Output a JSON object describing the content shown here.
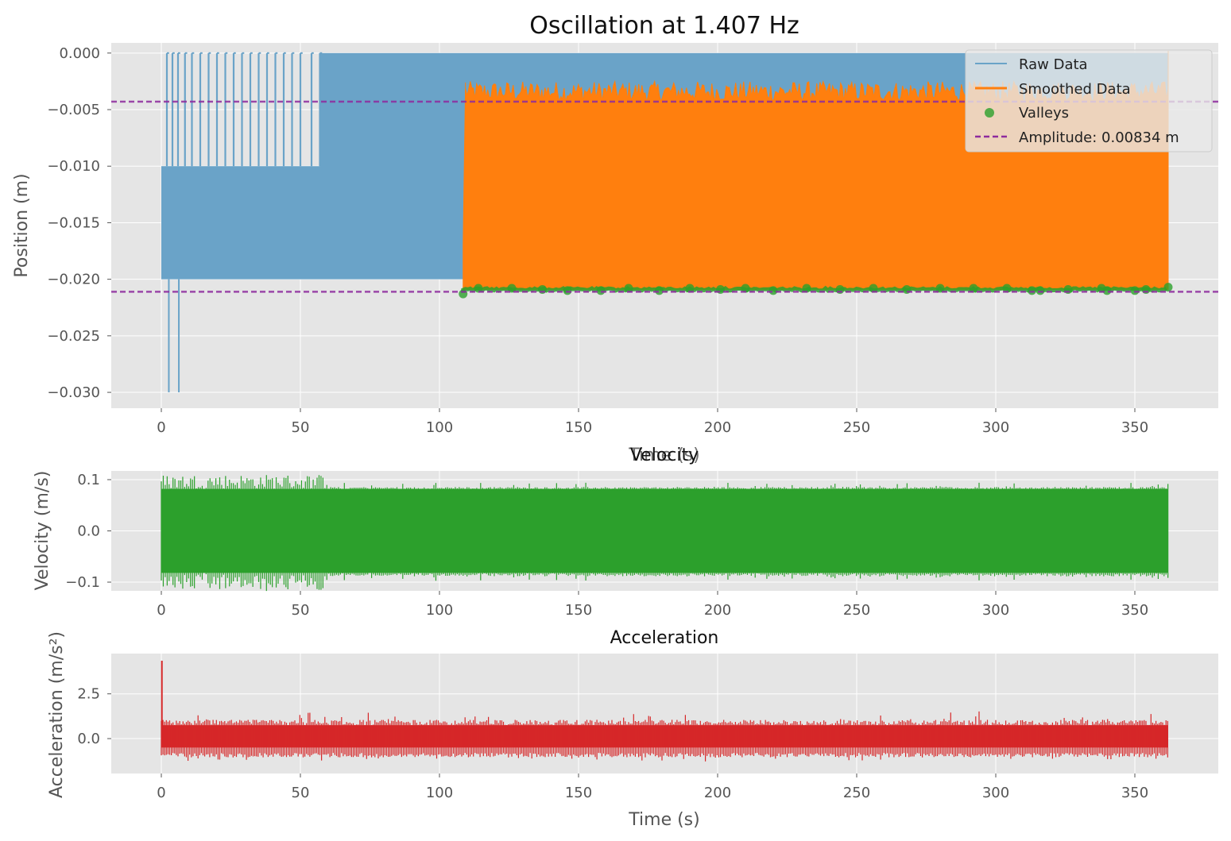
{
  "colors": {
    "axes_bg": "#e5e5e5",
    "grid": "#ffffff",
    "raw": "#6aa3c8",
    "smoothed": "#ff7f0e",
    "valleys": "#2ca02c",
    "amplitude": "#8e2b9e",
    "velocity": "#2ca02c",
    "acceleration": "#d62728"
  },
  "chart_data": [
    {
      "type": "line",
      "title": "Oscillation at 1.407 Hz",
      "xlabel": "Time (s)",
      "ylabel": "Position (m)",
      "xlim": [
        -18,
        380
      ],
      "ylim": [
        -0.0314,
        0.0009
      ],
      "xticks": [
        0,
        50,
        100,
        150,
        200,
        250,
        300,
        350
      ],
      "xtick_labels": [
        "0",
        "50",
        "100",
        "150",
        "200",
        "250",
        "300",
        "350"
      ],
      "yticks": [
        0.0,
        -0.005,
        -0.01,
        -0.015,
        -0.02,
        -0.025,
        -0.03
      ],
      "ytick_labels": [
        "0.000",
        "−0.005",
        "−0.010",
        "−0.015",
        "−0.020",
        "−0.025",
        "−0.030"
      ],
      "grid": true,
      "legend_position": "top-right",
      "frequency_hz": 1.407,
      "series": [
        {
          "name": "Raw Data",
          "kind": "raw",
          "description_envelope": {
            "x_start": 0,
            "x_end": 362,
            "y_min": -0.02,
            "y_max": 0.0
          },
          "segments": [
            {
              "x_start": 0.0,
              "x_end": 57.0,
              "y_low": -0.02,
              "y_high": -0.01,
              "spikes_to": 0.0,
              "spike_x": [
                2,
                4,
                6,
                8.5,
                11,
                14,
                17,
                20,
                23,
                26,
                29,
                32,
                35,
                38,
                41,
                44,
                47,
                50,
                54,
                57
              ]
            },
            {
              "x_start": 57.0,
              "x_end": 362.0,
              "y_low": -0.02,
              "y_high": 0.0
            }
          ],
          "outliers": [
            {
              "x": 2.7,
              "y": -0.03
            },
            {
              "x": 6.3,
              "y": -0.03
            }
          ]
        },
        {
          "name": "Smoothed Data",
          "kind": "smoothed",
          "x_start": 108.5,
          "x_end": 362.0,
          "y_low": -0.0209,
          "y_high_range": [
            -0.0043,
            -0.0025
          ]
        },
        {
          "name": "Valleys",
          "kind": "scatter",
          "points": [
            {
              "x": 108.5,
              "y": -0.0213
            },
            {
              "x": 114,
              "y": -0.0208
            },
            {
              "x": 126,
              "y": -0.0208
            },
            {
              "x": 137,
              "y": -0.0209
            },
            {
              "x": 146,
              "y": -0.021
            },
            {
              "x": 158,
              "y": -0.021
            },
            {
              "x": 168,
              "y": -0.0208
            },
            {
              "x": 179,
              "y": -0.021
            },
            {
              "x": 190,
              "y": -0.0208
            },
            {
              "x": 201,
              "y": -0.0209
            },
            {
              "x": 210,
              "y": -0.0208
            },
            {
              "x": 220,
              "y": -0.021
            },
            {
              "x": 232,
              "y": -0.0208
            },
            {
              "x": 244,
              "y": -0.0209
            },
            {
              "x": 256,
              "y": -0.0208
            },
            {
              "x": 268,
              "y": -0.0209
            },
            {
              "x": 280,
              "y": -0.0208
            },
            {
              "x": 292,
              "y": -0.0208
            },
            {
              "x": 304,
              "y": -0.0208
            },
            {
              "x": 313,
              "y": -0.021
            },
            {
              "x": 316,
              "y": -0.021
            },
            {
              "x": 326,
              "y": -0.0209
            },
            {
              "x": 338,
              "y": -0.0208
            },
            {
              "x": 340,
              "y": -0.021
            },
            {
              "x": 350,
              "y": -0.021
            },
            {
              "x": 354,
              "y": -0.0209
            },
            {
              "x": 362,
              "y": -0.0207
            }
          ]
        },
        {
          "name": "Amplitude: 0.00834 m",
          "kind": "hline",
          "values": [
            -0.0043,
            -0.0211
          ]
        }
      ]
    },
    {
      "type": "line",
      "title": "Velocity",
      "xlabel": "Time (s)",
      "ylabel": "Velocity (m/s)",
      "xlim": [
        -18,
        380
      ],
      "ylim": [
        -0.117,
        0.117
      ],
      "xticks": [
        0,
        50,
        100,
        150,
        200,
        250,
        300,
        350
      ],
      "xtick_labels": [
        "0",
        "50",
        "100",
        "150",
        "200",
        "250",
        "300",
        "350"
      ],
      "yticks": [
        0.1,
        0.0,
        -0.1
      ],
      "ytick_labels": [
        "0.1",
        "0.0",
        "−0.1"
      ],
      "grid": true,
      "series": [
        {
          "kind": "band",
          "x_start": 0,
          "x_end": 362,
          "y_low": -0.082,
          "y_high": 0.082,
          "early_peak": 0.11,
          "early_until": 60
        }
      ]
    },
    {
      "type": "line",
      "title": "Acceleration",
      "xlabel": "Time (s)",
      "ylabel": "Acceleration (m/s²)",
      "xlim": [
        -18,
        380
      ],
      "ylim": [
        -1.95,
        4.75
      ],
      "xticks": [
        0,
        50,
        100,
        150,
        200,
        250,
        300,
        350
      ],
      "xtick_labels": [
        "0",
        "50",
        "100",
        "150",
        "200",
        "250",
        "300",
        "350"
      ],
      "yticks": [
        2.5,
        0.0
      ],
      "ytick_labels": [
        "2.5",
        "0.0"
      ],
      "grid": true,
      "series": [
        {
          "kind": "band",
          "x_start": 0,
          "x_end": 362,
          "y_low": -0.75,
          "y_high": 1.05,
          "peak": {
            "x": 0.2,
            "y": 4.35
          }
        }
      ]
    }
  ]
}
